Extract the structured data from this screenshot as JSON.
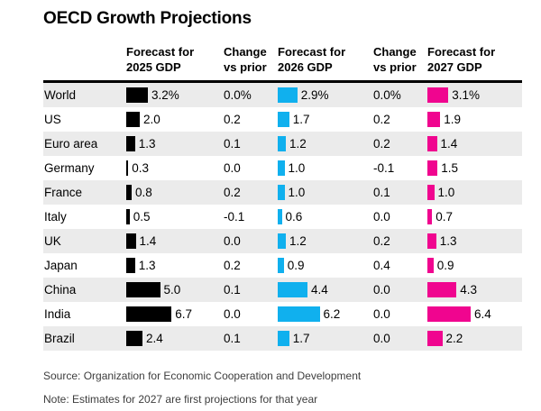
{
  "title": "OECD Growth Projections",
  "colors": {
    "bar_2025": "#000000",
    "bar_2026": "#10b0ee",
    "bar_2027": "#f0058f",
    "row_stripe": "#ebebeb",
    "footer_text": "#3d3d3d"
  },
  "header": {
    "columns": [
      {
        "line1": "Forecast for",
        "line2": "2025 GDP"
      },
      {
        "line1": "Change",
        "line2": "vs prior"
      },
      {
        "line1": "Forecast for",
        "line2": "2026 GDP"
      },
      {
        "line1": "Change",
        "line2": "vs prior"
      },
      {
        "line1": "Forecast for",
        "line2": "2027 GDP"
      }
    ]
  },
  "chart_data": {
    "type": "bar",
    "title": "OECD Growth Projections",
    "categories": [
      "World",
      "US",
      "Euro area",
      "Germany",
      "France",
      "Italy",
      "UK",
      "Japan",
      "China",
      "India",
      "Brazil"
    ],
    "unit": "percent GDP growth",
    "xlim": [
      0,
      7
    ],
    "series": [
      {
        "name": "Forecast for 2025 GDP",
        "kind": "bar",
        "color": "#000000",
        "values": [
          3.2,
          2.0,
          1.3,
          0.3,
          0.8,
          0.5,
          1.4,
          1.3,
          5.0,
          6.7,
          2.4
        ],
        "labels": [
          "3.2%",
          "2.0",
          "1.3",
          "0.3",
          "0.8",
          "0.5",
          "1.4",
          "1.3",
          "5.0",
          "6.7",
          "2.4"
        ]
      },
      {
        "name": "Change vs prior (2025)",
        "kind": "text",
        "values": [
          0.0,
          0.2,
          0.1,
          0.0,
          0.2,
          -0.1,
          0.0,
          0.2,
          0.1,
          0.0,
          0.1
        ],
        "labels": [
          "0.0%",
          "0.2",
          "0.1",
          "0.0",
          "0.2",
          "-0.1",
          "0.0",
          "0.2",
          "0.1",
          "0.0",
          "0.1"
        ]
      },
      {
        "name": "Forecast for 2026 GDP",
        "kind": "bar",
        "color": "#10b0ee",
        "values": [
          2.9,
          1.7,
          1.2,
          1.0,
          1.0,
          0.6,
          1.2,
          0.9,
          4.4,
          6.2,
          1.7
        ],
        "labels": [
          "2.9%",
          "1.7",
          "1.2",
          "1.0",
          "1.0",
          "0.6",
          "1.2",
          "0.9",
          "4.4",
          "6.2",
          "1.7"
        ]
      },
      {
        "name": "Change vs prior (2026)",
        "kind": "text",
        "values": [
          0.0,
          0.2,
          0.2,
          -0.1,
          0.1,
          0.0,
          0.2,
          0.4,
          0.0,
          0.0,
          0.0
        ],
        "labels": [
          "0.0%",
          "0.2",
          "0.2",
          "-0.1",
          "0.1",
          "0.0",
          "0.2",
          "0.4",
          "0.0",
          "0.0",
          "0.0"
        ]
      },
      {
        "name": "Forecast for 2027 GDP",
        "kind": "bar",
        "color": "#f0058f",
        "values": [
          3.1,
          1.9,
          1.4,
          1.5,
          1.0,
          0.7,
          1.3,
          0.9,
          4.3,
          6.4,
          2.2
        ],
        "labels": [
          "3.1%",
          "1.9",
          "1.4",
          "1.5",
          "1.0",
          "0.7",
          "1.3",
          "0.9",
          "4.3",
          "6.4",
          "2.2"
        ]
      }
    ]
  },
  "footer": {
    "source": "Source: Organization for Economic Cooperation and Development",
    "note": "Note: Estimates for 2027 are first projections for that year"
  }
}
